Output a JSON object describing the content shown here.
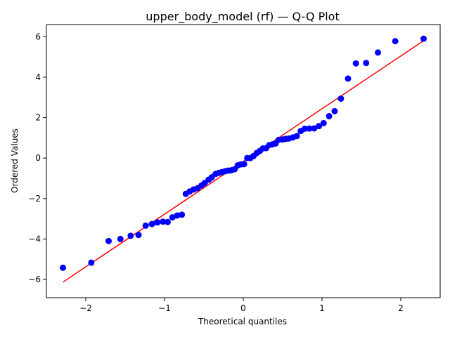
{
  "chart_data": {
    "type": "scatter",
    "title": "upper_body_model (rf) — Q-Q Plot",
    "xlabel": "Theoretical quantiles",
    "ylabel": "Ordered Values",
    "xlim": [
      -2.5,
      2.5
    ],
    "ylim": [
      -6.9,
      6.6
    ],
    "xticks": [
      -2,
      -1,
      0,
      1,
      2
    ],
    "yticks": [
      -6,
      -4,
      -2,
      0,
      2,
      4,
      6
    ],
    "xtick_labels": [
      "−2",
      "−1",
      "0",
      "1",
      "2"
    ],
    "ytick_labels": [
      "−6",
      "−4",
      "−2",
      "0",
      "2",
      "4",
      "6"
    ],
    "grid": false,
    "series": [
      {
        "kind": "points",
        "color": "#0000ff",
        "x": [
          -2.29,
          -1.93,
          -1.71,
          -1.56,
          -1.43,
          -1.33,
          -1.24,
          -1.16,
          -1.09,
          -1.02,
          -0.96,
          -0.9,
          -0.84,
          -0.78,
          -0.73,
          -0.68,
          -0.63,
          -0.58,
          -0.53,
          -0.49,
          -0.44,
          -0.4,
          -0.35,
          -0.31,
          -0.27,
          -0.23,
          -0.19,
          -0.15,
          -0.11,
          -0.07,
          -0.03,
          0.01,
          0.05,
          0.09,
          0.13,
          0.17,
          0.21,
          0.25,
          0.29,
          0.33,
          0.37,
          0.41,
          0.45,
          0.5,
          0.54,
          0.58,
          0.63,
          0.68,
          0.73,
          0.78,
          0.84,
          0.9,
          0.96,
          1.02,
          1.09,
          1.16,
          1.24,
          1.33,
          1.43,
          1.56,
          1.71,
          1.93,
          2.29
        ],
        "y": [
          -5.42,
          -5.17,
          -4.1,
          -4.0,
          -3.84,
          -3.8,
          -3.34,
          -3.26,
          -3.18,
          -3.14,
          -3.16,
          -2.93,
          -2.84,
          -2.8,
          -1.77,
          -1.65,
          -1.55,
          -1.49,
          -1.35,
          -1.23,
          -1.07,
          -0.95,
          -0.78,
          -0.73,
          -0.69,
          -0.65,
          -0.62,
          -0.6,
          -0.55,
          -0.36,
          -0.31,
          -0.3,
          0.0,
          0.0,
          0.1,
          0.25,
          0.35,
          0.48,
          0.49,
          0.64,
          0.68,
          0.72,
          0.9,
          0.92,
          0.95,
          0.97,
          1.02,
          1.09,
          1.34,
          1.45,
          1.46,
          1.47,
          1.58,
          1.73,
          2.07,
          2.32,
          2.94,
          3.93,
          4.68,
          4.7,
          5.22,
          5.78,
          5.9
        ]
      },
      {
        "kind": "fit-line",
        "color": "#ff0000",
        "x": [
          -2.29,
          2.29
        ],
        "y": [
          -6.13,
          5.8
        ]
      }
    ]
  }
}
